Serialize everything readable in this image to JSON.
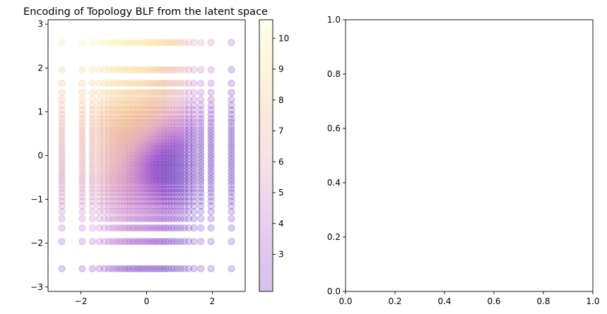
{
  "chart_data": [
    {
      "type": "scatter",
      "title": "Encoding of Topology BLF from the latent space",
      "xlabel": "",
      "ylabel": "",
      "xlim": [
        -3,
        3
      ],
      "ylim": [
        -3.1,
        3.1
      ],
      "xticks": [
        -2,
        0,
        2
      ],
      "yticks": [
        -3,
        -2,
        -1,
        0,
        1,
        2,
        3
      ],
      "xtick_labels": [
        "−2",
        "0",
        "2"
      ],
      "ytick_labels": [
        "−3",
        "−2",
        "−1",
        "0",
        "1",
        "2",
        "3"
      ],
      "grid": false,
      "colormap": "plasma",
      "marker_alpha": 0.25,
      "grid_points": {
        "description_values": "dense grid of latent-space points, denser near 0",
        "x": [
          -2.58,
          -1.96,
          -1.65,
          -1.44,
          -1.28,
          -1.15,
          -1.04,
          -0.94,
          -0.84,
          -0.76,
          -0.67,
          -0.59,
          -0.52,
          -0.44,
          -0.37,
          -0.29,
          -0.22,
          -0.15,
          -0.07,
          0.0,
          0.07,
          0.15,
          0.22,
          0.29,
          0.37,
          0.44,
          0.52,
          0.59,
          0.67,
          0.76,
          0.84,
          0.94,
          1.04,
          1.15,
          1.28,
          1.44,
          1.65,
          1.96,
          2.58
        ],
        "y": [
          -2.58,
          -1.96,
          -1.65,
          -1.44,
          -1.28,
          -1.15,
          -1.04,
          -0.94,
          -0.84,
          -0.76,
          -0.67,
          -0.59,
          -0.52,
          -0.44,
          -0.37,
          -0.29,
          -0.22,
          -0.15,
          -0.07,
          0.0,
          0.07,
          0.15,
          0.22,
          0.29,
          0.37,
          0.44,
          0.52,
          0.59,
          0.67,
          0.76,
          0.84,
          0.94,
          1.04,
          1.15,
          1.28,
          1.44,
          1.65,
          1.96,
          2.58
        ]
      },
      "colorbar": {
        "range": [
          1.8,
          10.6
        ],
        "ticks": [
          3,
          4,
          5,
          6,
          7,
          8,
          9,
          10
        ],
        "tick_labels": [
          "3",
          "4",
          "5",
          "6",
          "7",
          "8",
          "9",
          "10"
        ]
      }
    },
    {
      "type": "scatter",
      "title": "",
      "xlabel": "",
      "ylabel": "",
      "xlim": [
        0,
        1
      ],
      "ylim": [
        0,
        1
      ],
      "xticks": [
        0,
        0.2,
        0.4,
        0.6,
        0.8,
        1.0
      ],
      "yticks": [
        0,
        0.2,
        0.4,
        0.6,
        0.8,
        1.0
      ],
      "xtick_labels": [
        "0.0",
        "0.2",
        "0.4",
        "0.6",
        "0.8",
        "1.0"
      ],
      "ytick_labels": [
        "0.0",
        "0.2",
        "0.4",
        "0.6",
        "0.8",
        "1.0"
      ],
      "grid": false
    }
  ]
}
